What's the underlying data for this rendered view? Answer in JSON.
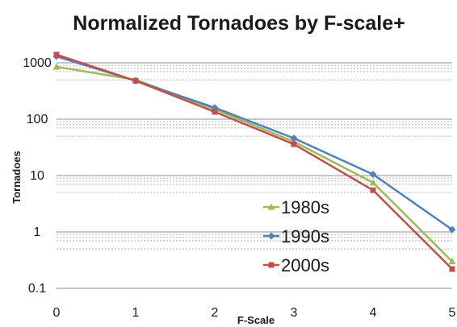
{
  "chart_data": {
    "type": "line",
    "title": "Normalized Tornadoes by F-scale+",
    "xlabel": "F-Scale",
    "ylabel": "Tornadoes",
    "x": [
      0,
      1,
      2,
      3,
      4,
      5
    ],
    "x_tick_labels": [
      "0",
      "1",
      "2",
      "3",
      "4",
      "5"
    ],
    "y_scale": "log",
    "ylim": [
      0.1,
      1000
    ],
    "y_tick_labels": [
      "1000",
      "100",
      "10",
      "1",
      "0.1"
    ],
    "y_tick_values": [
      1000,
      100,
      10,
      1,
      0.1
    ],
    "grid": "horizontal major and minor",
    "legend_position": "lower-right",
    "series": [
      {
        "name": "1980s",
        "color": "#9bbb59",
        "marker": "triangle",
        "values": [
          850,
          500,
          150,
          40,
          7.5,
          0.3
        ]
      },
      {
        "name": "1990s",
        "color": "#4f81bd",
        "marker": "diamond",
        "values": [
          1300,
          480,
          160,
          46,
          10.5,
          1.1
        ]
      },
      {
        "name": "2000s",
        "color": "#c0504d",
        "marker": "square",
        "values": [
          1400,
          480,
          135,
          36,
          5.5,
          0.22
        ]
      }
    ]
  }
}
